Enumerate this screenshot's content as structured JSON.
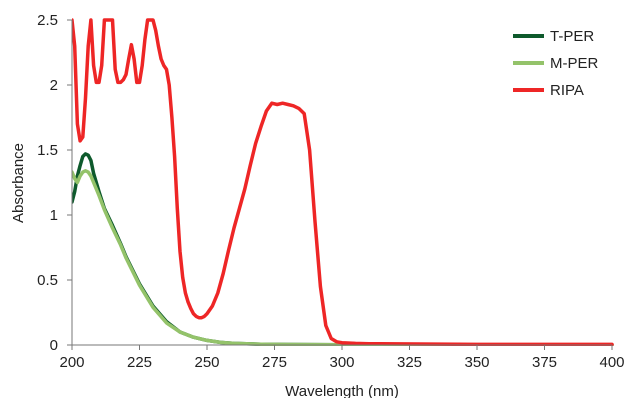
{
  "chart_data": {
    "type": "line",
    "xlabel": "Wavelength (nm)",
    "ylabel": "Absorbance",
    "xlim": [
      200,
      400
    ],
    "ylim": [
      0,
      2.5
    ],
    "x_ticks": [
      "200",
      "225",
      "250",
      "275",
      "300",
      "325",
      "350",
      "375",
      "400"
    ],
    "y_ticks": [
      "0",
      "0.5",
      "1",
      "1.5",
      "2",
      "2.5"
    ],
    "grid": false,
    "legend_position": "top-right",
    "series": [
      {
        "name": "T-PER",
        "color": "#0e5a2c",
        "x": [
          200,
          201,
          202,
          203,
          204,
          205,
          206,
          207,
          208,
          210,
          212,
          215,
          218,
          220,
          225,
          230,
          235,
          240,
          245,
          250,
          255,
          260,
          270,
          280,
          290,
          300,
          350,
          400
        ],
        "y": [
          1.1,
          1.18,
          1.3,
          1.38,
          1.45,
          1.47,
          1.46,
          1.42,
          1.32,
          1.18,
          1.05,
          0.92,
          0.78,
          0.68,
          0.47,
          0.3,
          0.18,
          0.1,
          0.06,
          0.035,
          0.02,
          0.012,
          0.006,
          0.004,
          0.003,
          0.002,
          0.001,
          0.001
        ]
      },
      {
        "name": "M-PER",
        "color": "#94c36a",
        "x": [
          200,
          201,
          202,
          203,
          204,
          205,
          206,
          207,
          208,
          210,
          212,
          215,
          218,
          220,
          225,
          230,
          235,
          240,
          245,
          250,
          255,
          260,
          270,
          280,
          290,
          300,
          350,
          400
        ],
        "y": [
          1.33,
          1.28,
          1.25,
          1.3,
          1.33,
          1.34,
          1.33,
          1.3,
          1.25,
          1.15,
          1.04,
          0.9,
          0.77,
          0.67,
          0.46,
          0.29,
          0.17,
          0.1,
          0.06,
          0.035,
          0.02,
          0.012,
          0.006,
          0.004,
          0.003,
          0.002,
          0.001,
          0.001
        ]
      },
      {
        "name": "RIPA",
        "color": "#ee2626",
        "x": [
          200,
          201,
          202,
          203,
          204,
          205,
          206,
          207,
          208,
          209,
          210,
          211,
          212,
          213,
          215,
          216,
          217,
          218,
          219,
          220,
          221,
          222,
          223,
          224,
          225,
          226,
          227,
          228,
          229,
          230,
          231,
          232,
          233,
          234,
          235,
          236,
          237,
          238,
          239,
          240,
          241,
          242,
          243,
          244,
          245,
          246,
          247,
          248,
          249,
          250,
          252,
          254,
          256,
          258,
          260,
          262,
          264,
          266,
          268,
          270,
          272,
          274,
          276,
          278,
          280,
          282,
          284,
          286,
          288,
          290,
          292,
          294,
          296,
          298,
          300,
          305,
          310,
          350,
          400
        ],
        "y": [
          2.5,
          2.3,
          1.7,
          1.57,
          1.6,
          1.9,
          2.3,
          2.5,
          2.15,
          2.02,
          2.02,
          2.15,
          2.5,
          2.5,
          2.5,
          2.12,
          2.02,
          2.02,
          2.04,
          2.08,
          2.2,
          2.31,
          2.2,
          2.02,
          2.02,
          2.15,
          2.35,
          2.5,
          2.5,
          2.5,
          2.42,
          2.3,
          2.2,
          2.15,
          2.12,
          2.0,
          1.75,
          1.45,
          1.05,
          0.72,
          0.52,
          0.4,
          0.33,
          0.28,
          0.24,
          0.22,
          0.21,
          0.21,
          0.22,
          0.24,
          0.3,
          0.4,
          0.55,
          0.73,
          0.9,
          1.05,
          1.2,
          1.38,
          1.55,
          1.68,
          1.8,
          1.86,
          1.85,
          1.86,
          1.85,
          1.84,
          1.82,
          1.78,
          1.5,
          0.95,
          0.45,
          0.15,
          0.05,
          0.025,
          0.018,
          0.012,
          0.01,
          0.005,
          0.005
        ]
      }
    ]
  }
}
